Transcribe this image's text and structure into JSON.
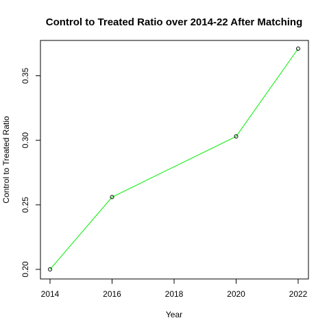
{
  "chart_data": {
    "type": "line",
    "title": "Control to Treated Ratio over 2014-22 After Matching",
    "xlabel": "Year",
    "ylabel": "Control to Treated Ratio",
    "x": [
      2014,
      2016,
      2020,
      2022
    ],
    "y": [
      0.2,
      0.256,
      0.303,
      0.371
    ],
    "xticks": [
      "2014",
      "2016",
      "2018",
      "2020",
      "2022"
    ],
    "yticks": [
      "0.20",
      "0.25",
      "0.30",
      "0.35"
    ],
    "xlim": [
      2014,
      2022
    ],
    "ylim": [
      0.2,
      0.371
    ],
    "line_color": "#00ee00",
    "marker": "open-circle",
    "marker_color": "#000000",
    "grid": false,
    "legend": "none"
  }
}
